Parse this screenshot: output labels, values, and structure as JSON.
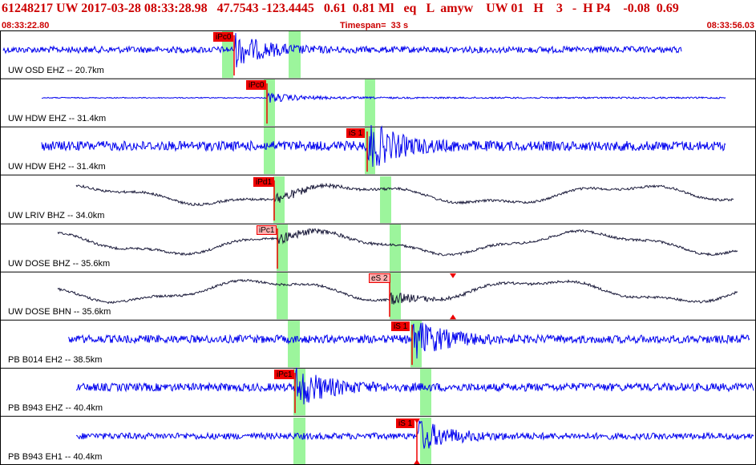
{
  "header": {
    "title": "61248217 UW 2017-03-28 08:33:28.98   47.7543 -123.4445   0.61  0.81 Ml   eq   L  amyw    UW 01   H    3   -  H P4    -0.08  0.69",
    "start_time": "08:33:22.80",
    "timespan": "Timespan=  33 s",
    "end_time": "08:33:56.03"
  },
  "colors": {
    "trace_blue": "#0000ee",
    "trace_black": "#1a1a3a",
    "pick_red": "#ee0000",
    "pick_light": "#ffb0b0",
    "window_green": "#9cf59c",
    "header_red": "#cc0000"
  },
  "traces": [
    {
      "label": "UW OSD EHZ -- 20.7km",
      "color": "blue",
      "picks": [
        {
          "text": "iPc0",
          "style": "red"
        }
      ]
    },
    {
      "label": "UW HDW EHZ -- 31.4km",
      "color": "blue",
      "picks": [
        {
          "text": "iPc0",
          "style": "red"
        }
      ]
    },
    {
      "label": "UW HDW EH2 -- 31.4km",
      "color": "blue",
      "picks": [
        {
          "text": "iS 1",
          "style": "red"
        }
      ]
    },
    {
      "label": "UW LRIV BHZ -- 34.0km",
      "color": "black",
      "picks": [
        {
          "text": "iPd1",
          "style": "red"
        }
      ]
    },
    {
      "label": "UW DOSE BHZ -- 35.6km",
      "color": "black",
      "picks": [
        {
          "text": "iPc1",
          "style": "light"
        }
      ]
    },
    {
      "label": "UW DOSE BHN -- 35.6km",
      "color": "black",
      "picks": [
        {
          "text": "eS 2",
          "style": "light"
        }
      ]
    },
    {
      "label": "PB B014 EH2 -- 38.5km",
      "color": "blue",
      "picks": [
        {
          "text": "iS 1",
          "style": "red"
        }
      ]
    },
    {
      "label": "PB B943 EHZ -- 40.4km",
      "color": "blue",
      "picks": [
        {
          "text": "iPc1",
          "style": "red"
        }
      ]
    },
    {
      "label": "PB B943 EH1 -- 40.4km",
      "color": "blue",
      "picks": [
        {
          "text": "iS 1",
          "style": "red"
        }
      ]
    }
  ]
}
